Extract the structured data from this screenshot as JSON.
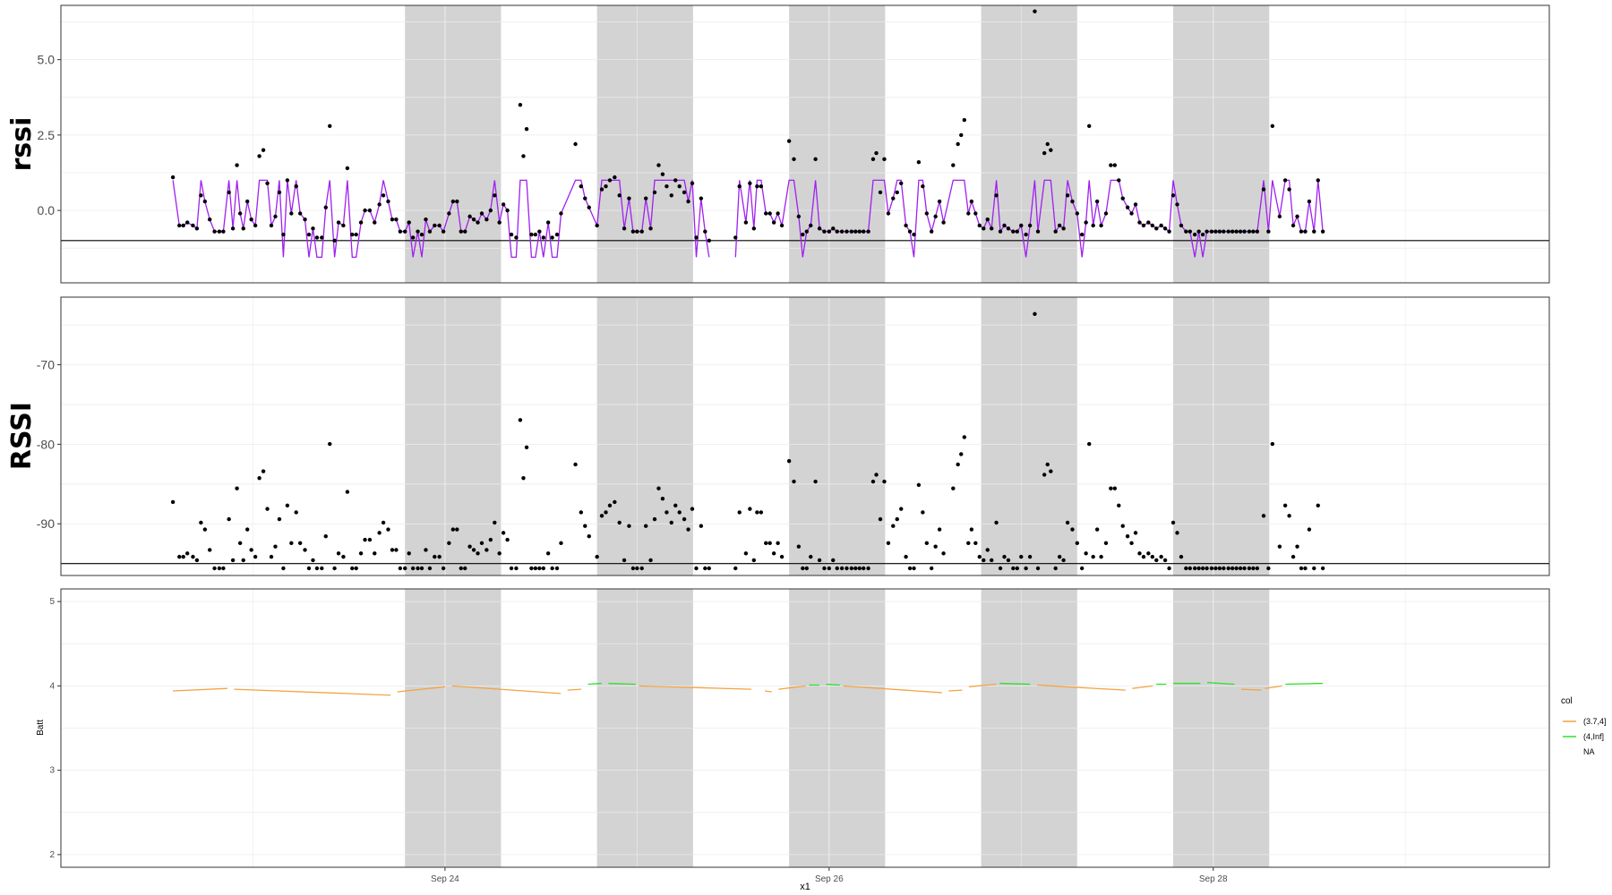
{
  "chart_data": {
    "type": "multi-panel time series",
    "x_axis": {
      "label": "x1",
      "range_days": [
        "2023-09-22",
        "2023-09-29"
      ],
      "tick_labels": [
        "Sep 24",
        "Sep 26",
        "Sep 28"
      ],
      "tick_dates": [
        "2023-09-24",
        "2023-09-26",
        "2023-09-28"
      ]
    },
    "night_shading": [
      [
        "2023-09-23 19:00",
        "2023-09-24 07:00"
      ],
      [
        "2023-09-24 19:00",
        "2023-09-25 07:00"
      ],
      [
        "2023-09-25 19:00",
        "2023-09-26 07:00"
      ],
      [
        "2023-09-26 19:00",
        "2023-09-27 07:00"
      ],
      [
        "2023-09-27 19:00",
        "2023-09-28 07:00"
      ]
    ],
    "panels": [
      {
        "id": "rssi",
        "ylabel": "rssi",
        "ylim": [
          -2.4,
          6.8
        ],
        "yticks": [
          0.0,
          2.5,
          5.0
        ],
        "ytick_labels": [
          "0.0",
          "2.5",
          "5.0"
        ],
        "hline": -1.0,
        "points_rssi_hours": [
          [
            0,
            1.1
          ],
          [
            0.8,
            -0.5
          ],
          [
            1.3,
            -0.5
          ],
          [
            1.8,
            -0.4
          ],
          [
            2.5,
            -0.5
          ],
          [
            3.0,
            -0.6
          ],
          [
            3.5,
            0.5
          ],
          [
            4.0,
            0.3
          ],
          [
            4.6,
            -0.3
          ],
          [
            5.2,
            -0.7
          ],
          [
            5.8,
            -0.7
          ],
          [
            6.3,
            -0.7
          ],
          [
            7.0,
            0.6
          ],
          [
            7.5,
            -0.6
          ],
          [
            8.0,
            1.5
          ],
          [
            8.4,
            -0.1
          ],
          [
            8.8,
            -0.6
          ],
          [
            9.3,
            0.3
          ],
          [
            9.8,
            -0.3
          ],
          [
            10.3,
            -0.5
          ],
          [
            10.8,
            1.8
          ],
          [
            11.3,
            2.0
          ],
          [
            11.8,
            0.9
          ],
          [
            12.3,
            -0.5
          ],
          [
            12.8,
            -0.2
          ],
          [
            13.3,
            0.6
          ],
          [
            13.8,
            -0.8
          ],
          [
            14.3,
            1.0
          ],
          [
            14.8,
            -0.1
          ],
          [
            15.4,
            0.8
          ],
          [
            15.9,
            -0.1
          ],
          [
            16.5,
            -0.3
          ],
          [
            17.0,
            -0.8
          ],
          [
            17.5,
            -0.6
          ],
          [
            18.0,
            -0.9
          ],
          [
            18.6,
            -0.9
          ],
          [
            19.1,
            0.1
          ],
          [
            19.6,
            2.8
          ],
          [
            20.2,
            -1.0
          ],
          [
            20.7,
            -0.4
          ],
          [
            21.3,
            -0.5
          ],
          [
            21.8,
            1.4
          ],
          [
            22.4,
            -0.8
          ],
          [
            22.9,
            -0.8
          ],
          [
            23.5,
            -0.4
          ],
          [
            24.0,
            0.0
          ],
          [
            24.6,
            0.0
          ],
          [
            25.2,
            -0.4
          ],
          [
            25.8,
            0.2
          ],
          [
            26.3,
            0.5
          ],
          [
            26.9,
            0.3
          ],
          [
            27.4,
            -0.3
          ],
          [
            27.9,
            -0.3
          ],
          [
            28.4,
            -0.7
          ],
          [
            29.0,
            -0.7
          ],
          [
            29.5,
            -0.4
          ],
          [
            30.0,
            -0.9
          ],
          [
            30.6,
            -0.7
          ],
          [
            31.1,
            -0.8
          ],
          [
            31.6,
            -0.3
          ],
          [
            32.1,
            -0.7
          ],
          [
            32.7,
            -0.5
          ],
          [
            33.3,
            -0.5
          ],
          [
            33.8,
            -0.7
          ],
          [
            34.5,
            -0.1
          ],
          [
            35.0,
            0.3
          ],
          [
            35.5,
            0.3
          ],
          [
            36.0,
            -0.7
          ],
          [
            36.5,
            -0.7
          ],
          [
            37.1,
            -0.2
          ],
          [
            37.6,
            -0.3
          ],
          [
            38.1,
            -0.4
          ],
          [
            38.6,
            -0.1
          ],
          [
            39.2,
            -0.3
          ],
          [
            39.7,
            0.0
          ],
          [
            40.2,
            0.5
          ],
          [
            40.8,
            -0.4
          ],
          [
            41.3,
            0.2
          ],
          [
            41.8,
            0.0
          ],
          [
            42.3,
            -0.8
          ],
          [
            42.9,
            -0.9
          ],
          [
            43.4,
            3.5
          ],
          [
            43.8,
            1.8
          ],
          [
            44.2,
            2.7
          ],
          [
            44.8,
            -0.8
          ],
          [
            45.3,
            -0.8
          ],
          [
            45.8,
            -0.7
          ],
          [
            46.3,
            -0.9
          ],
          [
            46.9,
            -0.4
          ],
          [
            47.4,
            -0.9
          ],
          [
            48.0,
            -0.8
          ],
          [
            48.5,
            -0.1
          ],
          [
            50.3,
            2.2
          ],
          [
            51.0,
            0.8
          ],
          [
            51.5,
            0.4
          ],
          [
            52.0,
            0.1
          ],
          [
            53.0,
            -0.5
          ],
          [
            53.6,
            0.7
          ],
          [
            54.1,
            0.8
          ],
          [
            54.6,
            1.0
          ],
          [
            55.2,
            1.1
          ],
          [
            55.8,
            0.5
          ],
          [
            56.4,
            -0.6
          ],
          [
            57.0,
            0.4
          ],
          [
            57.5,
            -0.7
          ],
          [
            58.0,
            -0.7
          ],
          [
            58.6,
            -0.7
          ],
          [
            59.1,
            0.4
          ],
          [
            59.7,
            -0.6
          ],
          [
            60.2,
            0.6
          ],
          [
            60.7,
            1.5
          ],
          [
            61.2,
            1.2
          ],
          [
            61.7,
            0.8
          ],
          [
            62.3,
            0.5
          ],
          [
            62.8,
            1.0
          ],
          [
            63.3,
            0.8
          ],
          [
            63.9,
            0.6
          ],
          [
            64.4,
            0.3
          ],
          [
            64.9,
            0.9
          ],
          [
            65.4,
            -0.9
          ],
          [
            66.0,
            0.4
          ],
          [
            66.5,
            -0.7
          ],
          [
            67.0,
            -1.0
          ],
          [
            70.3,
            -0.9
          ],
          [
            70.8,
            0.8
          ],
          [
            71.6,
            -0.4
          ],
          [
            72.1,
            0.9
          ],
          [
            72.6,
            -0.6
          ],
          [
            73.0,
            0.8
          ],
          [
            73.5,
            0.8
          ],
          [
            74.1,
            -0.1
          ],
          [
            74.6,
            -0.1
          ],
          [
            75.1,
            -0.4
          ],
          [
            75.6,
            -0.1
          ],
          [
            76.1,
            -0.5
          ],
          [
            77.0,
            2.3
          ],
          [
            77.6,
            1.7
          ],
          [
            78.2,
            -0.2
          ],
          [
            78.7,
            -0.8
          ],
          [
            79.2,
            -0.7
          ],
          [
            79.7,
            -0.5
          ],
          [
            80.3,
            1.7
          ],
          [
            80.8,
            -0.6
          ],
          [
            81.4,
            -0.7
          ],
          [
            82.0,
            -0.7
          ],
          [
            82.5,
            -0.6
          ],
          [
            83.0,
            -0.7
          ],
          [
            83.6,
            -0.7
          ],
          [
            84.2,
            -0.7
          ],
          [
            84.8,
            -0.7
          ],
          [
            85.3,
            -0.7
          ],
          [
            85.8,
            -0.7
          ],
          [
            86.3,
            -0.7
          ],
          [
            86.9,
            -0.7
          ],
          [
            87.5,
            1.7
          ],
          [
            87.9,
            1.9
          ],
          [
            88.4,
            0.6
          ],
          [
            88.9,
            1.7
          ],
          [
            89.4,
            -0.1
          ],
          [
            90.0,
            0.4
          ],
          [
            90.5,
            0.6
          ],
          [
            91.0,
            0.9
          ],
          [
            91.6,
            -0.5
          ],
          [
            92.1,
            -0.7
          ],
          [
            92.6,
            -0.8
          ],
          [
            93.2,
            1.6
          ],
          [
            93.7,
            0.8
          ],
          [
            94.2,
            -0.1
          ],
          [
            94.8,
            -0.7
          ],
          [
            95.3,
            -0.2
          ],
          [
            95.8,
            0.3
          ],
          [
            96.3,
            -0.4
          ],
          [
            97.5,
            1.5
          ],
          [
            98.1,
            2.2
          ],
          [
            98.5,
            2.5
          ],
          [
            98.9,
            3.0
          ],
          [
            99.4,
            -0.1
          ],
          [
            99.8,
            0.3
          ],
          [
            100.3,
            -0.1
          ],
          [
            100.8,
            -0.5
          ],
          [
            101.3,
            -0.6
          ],
          [
            101.8,
            -0.3
          ],
          [
            102.3,
            -0.6
          ],
          [
            102.9,
            0.5
          ],
          [
            103.4,
            -0.7
          ],
          [
            103.9,
            -0.5
          ],
          [
            104.4,
            -0.6
          ],
          [
            105.0,
            -0.7
          ],
          [
            105.5,
            -0.7
          ],
          [
            106.0,
            -0.5
          ],
          [
            106.6,
            -0.8
          ],
          [
            107.1,
            -0.5
          ],
          [
            107.7,
            6.6
          ],
          [
            108.1,
            -0.7
          ],
          [
            108.9,
            1.9
          ],
          [
            109.3,
            2.2
          ],
          [
            109.7,
            2.0
          ],
          [
            110.3,
            -0.7
          ],
          [
            110.8,
            -0.5
          ],
          [
            111.3,
            -0.6
          ],
          [
            111.8,
            0.5
          ],
          [
            112.4,
            0.3
          ],
          [
            113.0,
            -0.1
          ],
          [
            113.6,
            -0.8
          ],
          [
            114.1,
            -0.4
          ],
          [
            114.5,
            2.8
          ],
          [
            115.0,
            -0.5
          ],
          [
            115.5,
            0.3
          ],
          [
            116.0,
            -0.5
          ],
          [
            116.6,
            -0.1
          ],
          [
            117.2,
            1.5
          ],
          [
            117.7,
            1.5
          ],
          [
            118.2,
            1.0
          ],
          [
            118.7,
            0.4
          ],
          [
            119.3,
            0.1
          ],
          [
            119.8,
            -0.1
          ],
          [
            120.3,
            0.2
          ],
          [
            120.8,
            -0.4
          ],
          [
            121.3,
            -0.5
          ],
          [
            121.9,
            -0.4
          ],
          [
            122.4,
            -0.5
          ],
          [
            122.9,
            -0.6
          ],
          [
            123.5,
            -0.5
          ],
          [
            124.0,
            -0.6
          ],
          [
            124.5,
            -0.7
          ],
          [
            125.0,
            0.5
          ],
          [
            125.5,
            0.2
          ],
          [
            126.0,
            -0.5
          ],
          [
            126.6,
            -0.7
          ],
          [
            127.1,
            -0.7
          ],
          [
            127.7,
            -0.8
          ],
          [
            128.2,
            -0.7
          ],
          [
            128.7,
            -0.8
          ],
          [
            129.2,
            -0.7
          ],
          [
            129.8,
            -0.7
          ],
          [
            130.3,
            -0.7
          ],
          [
            130.8,
            -0.7
          ],
          [
            131.3,
            -0.7
          ],
          [
            131.9,
            -0.7
          ],
          [
            132.4,
            -0.7
          ],
          [
            132.9,
            -0.7
          ],
          [
            133.4,
            -0.7
          ],
          [
            133.9,
            -0.7
          ],
          [
            134.5,
            -0.7
          ],
          [
            135.0,
            -0.7
          ],
          [
            135.5,
            -0.7
          ],
          [
            136.3,
            0.7
          ],
          [
            136.9,
            -0.7
          ],
          [
            137.4,
            2.8
          ],
          [
            138.3,
            -0.2
          ],
          [
            139.0,
            1.0
          ],
          [
            139.5,
            0.7
          ],
          [
            140.0,
            -0.5
          ],
          [
            140.5,
            -0.2
          ],
          [
            141.0,
            -0.7
          ],
          [
            141.5,
            -0.7
          ],
          [
            142.0,
            0.3
          ],
          [
            142.6,
            -0.7
          ],
          [
            143.1,
            1.0
          ],
          [
            143.7,
            -0.7
          ]
        ],
        "line_color": "#a020f0"
      },
      {
        "id": "RSSI",
        "ylabel": "RSSI",
        "ylim": [
          -96.5,
          -61.5
        ],
        "yticks": [
          -90,
          -80,
          -70
        ],
        "ytick_labels": [
          "-90",
          "-80",
          "-70"
        ],
        "hline": -95.0,
        "points_offset_from_rssi": -92.0
      },
      {
        "id": "Batt",
        "ylabel": "Batt",
        "ylim": [
          1.85,
          5.15
        ],
        "yticks": [
          2,
          3,
          4,
          5
        ],
        "ytick_labels": [
          "2",
          "3",
          "4",
          "5"
        ],
        "series": [
          {
            "name": "(3.7,4]",
            "color": "#f4a341"
          },
          {
            "name": "(4,Inf]",
            "color": "#2ee02e"
          },
          {
            "name": "NA",
            "color": ""
          }
        ]
      }
    ],
    "legend": {
      "title": "col",
      "placement": "right",
      "entries": [
        "(3.7,4]",
        "(4,Inf]",
        "NA"
      ]
    }
  }
}
